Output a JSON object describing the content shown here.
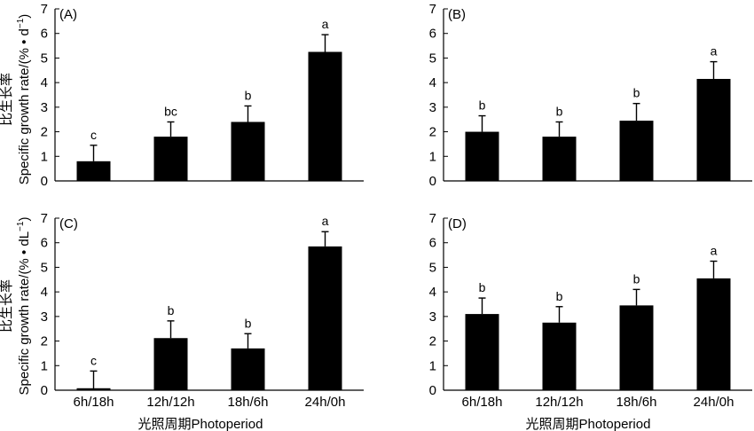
{
  "figure": {
    "ylabel_cn": "比生长率",
    "ylabel_top": "Specific growth rate/(% • d",
    "ylabel_top_sup": "−1",
    "ylabel_top_close": ")",
    "ylabel_bottom": "Specific growth rate/(% • dL",
    "ylabel_bottom_sup": "−1",
    "ylabel_bottom_close": ")",
    "xlabel": "光照周期Photoperiod"
  },
  "chart_data": [
    {
      "type": "bar",
      "panel": "(A)",
      "categories": [
        "6h/18h",
        "12h/12h",
        "18h/6h",
        "24h/0h"
      ],
      "values": [
        0.8,
        1.8,
        2.4,
        5.25
      ],
      "errors": [
        0.65,
        0.6,
        0.65,
        0.7
      ],
      "letters": [
        "c",
        "bc",
        "b",
        "a"
      ],
      "ylim": [
        0,
        7
      ],
      "yticks": [
        "0",
        "1",
        "2",
        "3",
        "4",
        "5",
        "6",
        "7"
      ],
      "show_x_ticklabels": false
    },
    {
      "type": "bar",
      "panel": "(B)",
      "categories": [
        "6h/18h",
        "12h/12h",
        "18h/6h",
        "24h/0h"
      ],
      "values": [
        2.0,
        1.8,
        2.45,
        4.15
      ],
      "errors": [
        0.65,
        0.6,
        0.7,
        0.7
      ],
      "letters": [
        "b",
        "b",
        "b",
        "a"
      ],
      "ylim": [
        0,
        7
      ],
      "yticks": [
        "0",
        "1",
        "2",
        "3",
        "4",
        "5",
        "6",
        "7"
      ],
      "show_x_ticklabels": false
    },
    {
      "type": "bar",
      "panel": "(C)",
      "categories": [
        "6h/18h",
        "12h/12h",
        "18h/6h",
        "24h/0h"
      ],
      "values": [
        0.08,
        2.12,
        1.7,
        5.85
      ],
      "errors": [
        0.7,
        0.7,
        0.6,
        0.6
      ],
      "letters": [
        "c",
        "b",
        "b",
        "a"
      ],
      "ylim": [
        0,
        7
      ],
      "yticks": [
        "0",
        "1",
        "2",
        "3",
        "4",
        "5",
        "6",
        "7"
      ],
      "show_x_ticklabels": true
    },
    {
      "type": "bar",
      "panel": "(D)",
      "categories": [
        "6h/18h",
        "12h/12h",
        "18h/6h",
        "24h/0h"
      ],
      "values": [
        3.1,
        2.75,
        3.45,
        4.55
      ],
      "errors": [
        0.65,
        0.65,
        0.65,
        0.7
      ],
      "letters": [
        "b",
        "b",
        "b",
        "a"
      ],
      "ylim": [
        0,
        7
      ],
      "yticks": [
        "0",
        "1",
        "2",
        "3",
        "4",
        "5",
        "6",
        "7"
      ],
      "show_x_ticklabels": true
    }
  ]
}
